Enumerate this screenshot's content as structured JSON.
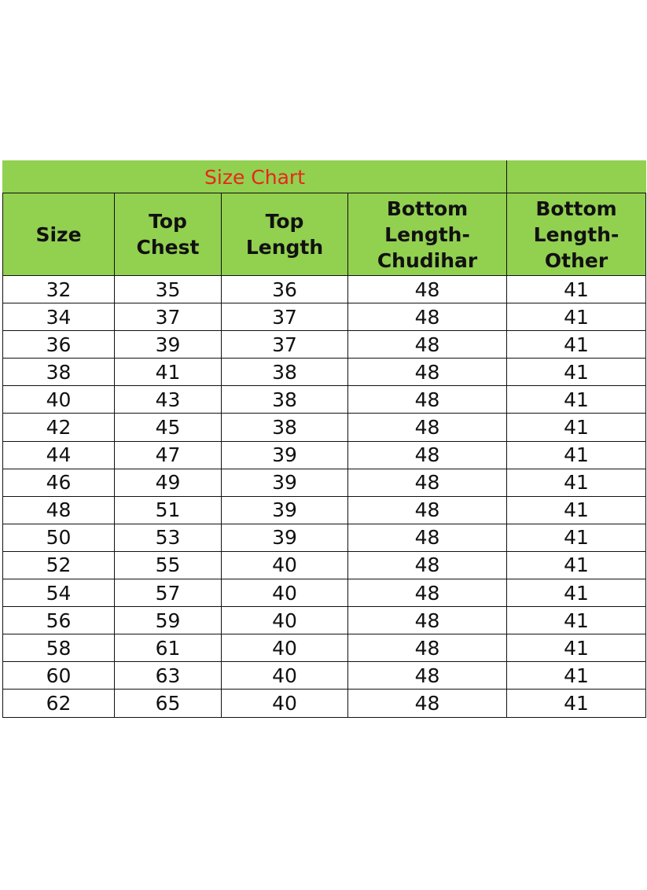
{
  "title": "Size Chart",
  "colors": {
    "header_bg": "#92d050",
    "title_text": "#e8261c"
  },
  "columns": [
    "Size",
    "Top Chest",
    "Top Length",
    "Bottom Length-Chudihar",
    "Bottom Length-Other"
  ],
  "header_lines": [
    [
      "Size"
    ],
    [
      "Top",
      "Chest"
    ],
    [
      "Top",
      "Length"
    ],
    [
      "Bottom",
      "Length-",
      "Chudihar"
    ],
    [
      "Bottom",
      "Length-",
      "Other"
    ]
  ],
  "rows": [
    [
      "32",
      "35",
      "36",
      "48",
      "41"
    ],
    [
      "34",
      "37",
      "37",
      "48",
      "41"
    ],
    [
      "36",
      "39",
      "37",
      "48",
      "41"
    ],
    [
      "38",
      "41",
      "38",
      "48",
      "41"
    ],
    [
      "40",
      "43",
      "38",
      "48",
      "41"
    ],
    [
      "42",
      "45",
      "38",
      "48",
      "41"
    ],
    [
      "44",
      "47",
      "39",
      "48",
      "41"
    ],
    [
      "46",
      "49",
      "39",
      "48",
      "41"
    ],
    [
      "48",
      "51",
      "39",
      "48",
      "41"
    ],
    [
      "50",
      "53",
      "39",
      "48",
      "41"
    ],
    [
      "52",
      "55",
      "40",
      "48",
      "41"
    ],
    [
      "54",
      "57",
      "40",
      "48",
      "41"
    ],
    [
      "56",
      "59",
      "40",
      "48",
      "41"
    ],
    [
      "58",
      "61",
      "40",
      "48",
      "41"
    ],
    [
      "60",
      "63",
      "40",
      "48",
      "41"
    ],
    [
      "62",
      "65",
      "40",
      "48",
      "41"
    ]
  ]
}
